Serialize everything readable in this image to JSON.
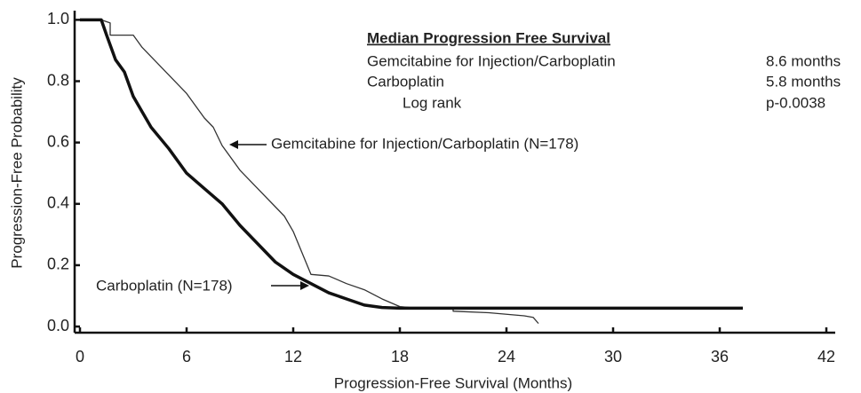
{
  "chart_data": {
    "type": "line",
    "x_label": "Progression-Free Survival (Months)",
    "y_label": "Progression-Free Probability",
    "xlim": [
      -0.3,
      42.5
    ],
    "ylim": [
      -0.02,
      1.03
    ],
    "xticks": [
      0,
      6,
      12,
      18,
      24,
      30,
      36,
      42
    ],
    "yticks": [
      {
        "value": 0,
        "label": "0.0"
      },
      0.2,
      0.4,
      0.6,
      0.8,
      {
        "value": 1,
        "label": "1.0"
      }
    ],
    "series": [
      {
        "name": "Gemcitabine for Injection/Carboplatin (N=178)",
        "color": "#333333",
        "width": 1.3,
        "x": [
          0,
          1.2,
          1.7,
          1.7,
          3,
          3.5,
          4,
          5,
          6,
          7,
          7.5,
          8,
          9,
          10,
          11,
          11.5,
          12,
          12.5,
          13,
          14,
          15,
          16,
          17,
          18,
          19,
          21,
          21,
          23,
          24,
          25,
          25.5,
          25.8
        ],
        "values": [
          1.0,
          1.0,
          0.99,
          0.95,
          0.95,
          0.91,
          0.88,
          0.82,
          0.76,
          0.68,
          0.65,
          0.59,
          0.51,
          0.45,
          0.39,
          0.36,
          0.31,
          0.24,
          0.17,
          0.165,
          0.14,
          0.12,
          0.09,
          0.065,
          0.06,
          0.06,
          0.05,
          0.045,
          0.04,
          0.035,
          0.03,
          0.01
        ]
      },
      {
        "name": "Carboplatin (N=178)",
        "color": "#111111",
        "width": 3.5,
        "x": [
          0,
          1.2,
          1.5,
          2,
          2.5,
          3,
          4,
          5,
          6,
          7,
          8,
          9,
          10,
          11,
          12,
          13,
          14,
          15,
          16,
          17,
          18,
          37.3
        ],
        "values": [
          1.0,
          1.0,
          0.95,
          0.87,
          0.83,
          0.75,
          0.65,
          0.58,
          0.5,
          0.45,
          0.4,
          0.33,
          0.27,
          0.21,
          0.17,
          0.14,
          0.11,
          0.09,
          0.07,
          0.062,
          0.06,
          0.06
        ]
      }
    ],
    "annotations": {
      "median_title": "Median Progression Free Survival",
      "median_rows": [
        [
          "Gemcitabine for Injection/Carboplatin",
          "8.6 months"
        ],
        [
          "Carboplatin",
          "5.8 months"
        ],
        [
          "Log rank",
          "p-0.0038"
        ]
      ]
    }
  }
}
